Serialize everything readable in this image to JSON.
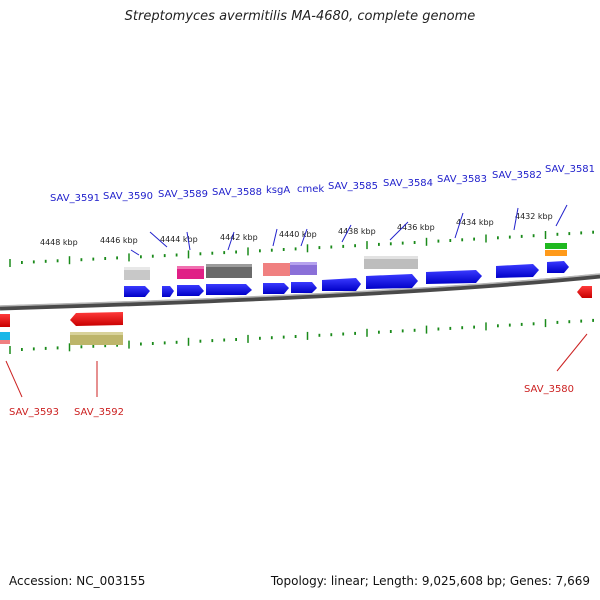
{
  "title": "Streptomyces avermitilis MA-4680, complete genome",
  "footer": {
    "accession": "Accession: NC_003155",
    "summary": "Topology: linear; Length: 9,025,608 bp; Genes: 7,669"
  },
  "scale_labels": [
    "4448 kbp",
    "4446 kbp",
    "4444 kbp",
    "4442 kbp",
    "4440 kbp",
    "4438 kbp",
    "4436 kbp",
    "4434 kbp",
    "4432 kbp"
  ],
  "top_genes": [
    "SAV_3591",
    "SAV_3590",
    "SAV_3589",
    "SAV_3588",
    "ksgA",
    "cmek",
    "SAV_3585",
    "SAV_3584",
    "SAV_3583",
    "SAV_3582",
    "SAV_3581"
  ],
  "bottom_genes": [
    "SAV_3593",
    "SAV_3592",
    "SAV_3580"
  ],
  "colors": {
    "forward_gene": "#0000ee",
    "reverse_gene": "#ee0000",
    "forward_label": "#2222cc",
    "reverse_label": "#cc2222",
    "tick": "#1a8a1a",
    "backbone": "#707070"
  }
}
